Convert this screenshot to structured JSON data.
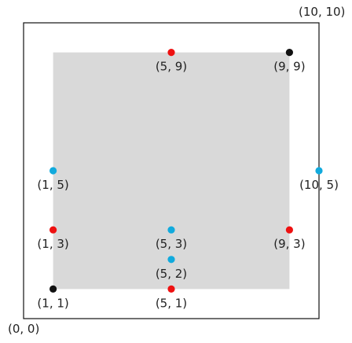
{
  "corner_labels": {
    "origin": "(0, 0)",
    "top_right": "(10, 10)"
  },
  "colors": {
    "black": "#111111",
    "red": "#ee1111",
    "blue": "#11aadd",
    "square_fill": "#d9d9d9",
    "frame_stroke": "#111111"
  },
  "outer_frame": {
    "x": [
      0,
      10
    ],
    "y": [
      0,
      10
    ]
  },
  "inner_square": {
    "x": [
      1,
      9
    ],
    "y": [
      1,
      9
    ]
  },
  "points": [
    {
      "x": 1,
      "y": 1,
      "color": "black",
      "label": "(1, 1)"
    },
    {
      "x": 9,
      "y": 9,
      "color": "black",
      "label": "(9, 9)"
    },
    {
      "x": 5,
      "y": 9,
      "color": "red",
      "label": "(5, 9)"
    },
    {
      "x": 1,
      "y": 3,
      "color": "red",
      "label": "(1, 3)"
    },
    {
      "x": 9,
      "y": 3,
      "color": "red",
      "label": "(9, 3)"
    },
    {
      "x": 5,
      "y": 1,
      "color": "red",
      "label": "(5, 1)"
    },
    {
      "x": 1,
      "y": 5,
      "color": "blue",
      "label": "(1, 5)"
    },
    {
      "x": 10,
      "y": 5,
      "color": "blue",
      "label": "(10, 5)"
    },
    {
      "x": 5,
      "y": 3,
      "color": "blue",
      "label": "(5, 3)"
    },
    {
      "x": 5,
      "y": 2,
      "color": "blue",
      "label": "(5, 2)"
    }
  ]
}
